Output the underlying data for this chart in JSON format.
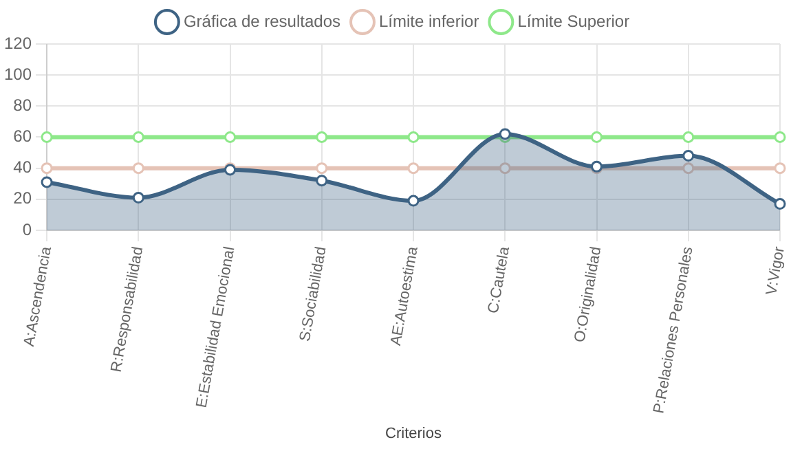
{
  "chart_data": {
    "type": "line",
    "xlabel": "Criterios",
    "categories": [
      "A:Ascendencia",
      "R:Responsabilidad",
      "E:Estabilidad Emocional",
      "S:Sociabilidad",
      "AE:Autoestima",
      "C:Cautela",
      "O:Originalidad",
      "P:Relaciones Personales",
      "V:Vigor"
    ],
    "series": [
      {
        "name": "Gráfica de resultados",
        "type": "area",
        "color": "#3e6384",
        "values": [
          31,
          21,
          39,
          32,
          19,
          62,
          41,
          48,
          17
        ]
      },
      {
        "name": "Límite inferior",
        "type": "line",
        "color": "#e5c3b6",
        "values": [
          40,
          40,
          40,
          40,
          40,
          40,
          40,
          40,
          40
        ]
      },
      {
        "name": "Límite Superior",
        "type": "line",
        "color": "#8ee88a",
        "values": [
          60,
          60,
          60,
          60,
          60,
          60,
          60,
          60,
          60
        ]
      }
    ],
    "ylim": [
      0,
      120
    ],
    "yticks": [
      0,
      20,
      40,
      60,
      80,
      100,
      120
    ],
    "grid": true,
    "legend": "top",
    "marker": "circle"
  }
}
